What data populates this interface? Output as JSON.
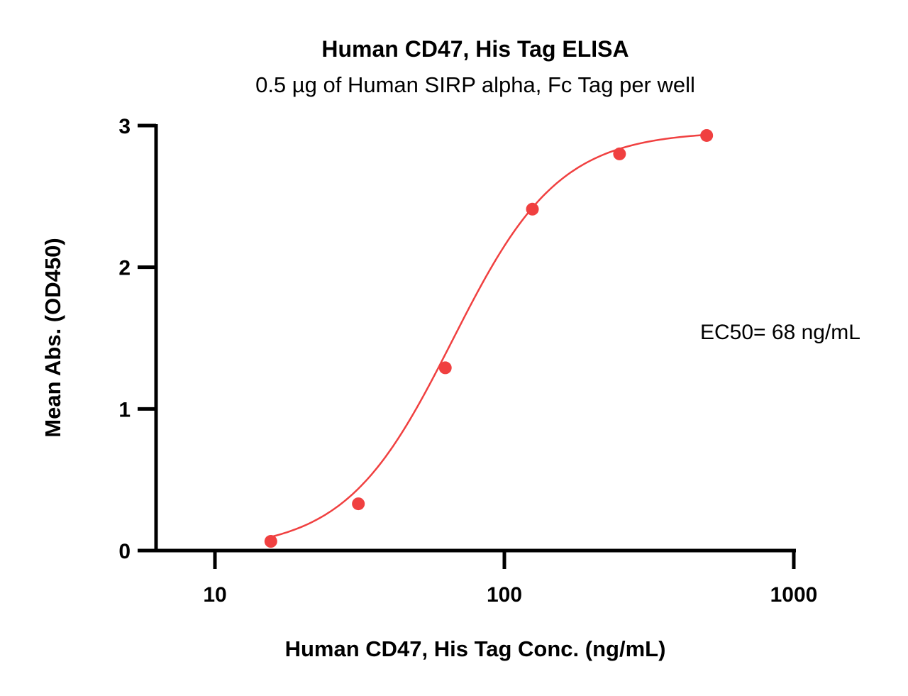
{
  "chart_data": {
    "type": "scatter",
    "title": "Human CD47, His Tag ELISA",
    "subtitle": "0.5 µg of Human SIRP alpha, Fc Tag per well",
    "xlabel": "Human CD47, His Tag Conc. (ng/mL)",
    "ylabel": "Mean Abs. (OD450)",
    "xscale": "log",
    "xlim": [
      6.5,
      1000
    ],
    "ylim": [
      0,
      3
    ],
    "x_ticks": [
      10,
      100,
      1000
    ],
    "x_tick_labels": [
      "10",
      "100",
      "1000"
    ],
    "y_ticks": [
      0,
      1,
      2,
      3
    ],
    "y_tick_labels": [
      "0",
      "1",
      "2",
      "3"
    ],
    "grid": false,
    "series": [
      {
        "x": [
          15.6,
          31.3,
          62.5,
          125,
          250,
          500
        ],
        "y": [
          0.065,
          0.33,
          1.29,
          2.41,
          2.8,
          2.93
        ],
        "color": "#f04040",
        "fit": "four-parameter logistic"
      }
    ],
    "annotation": "EC50= 68 ng/mL"
  }
}
